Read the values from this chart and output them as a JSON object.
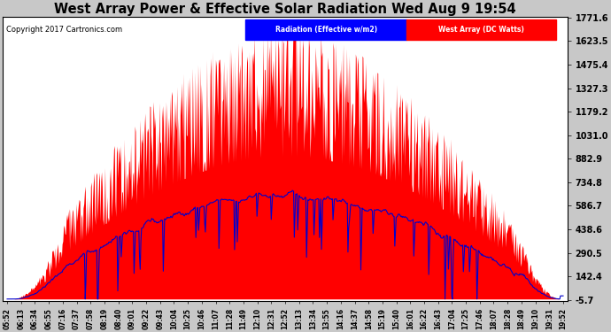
{
  "title": "West Array Power & Effective Solar Radiation Wed Aug 9 19:54",
  "copyright": "Copyright 2017 Cartronics.com",
  "legend_blue": "Radiation (Effective w/m2)",
  "legend_red": "West Array (DC Watts)",
  "yticks": [
    1771.6,
    1623.5,
    1475.4,
    1327.3,
    1179.2,
    1031.0,
    882.9,
    734.8,
    586.7,
    438.6,
    290.5,
    142.4,
    -5.7
  ],
  "ymin": -5.7,
  "ymax": 1771.6,
  "bg_color": "#c8c8c8",
  "plot_bg": "#ffffff",
  "grid_color": "#cccccc",
  "title_color": "black",
  "red_color": "#ff0000",
  "blue_color": "#0000cc",
  "xtick_labels": [
    "05:52",
    "06:13",
    "06:34",
    "06:55",
    "07:16",
    "07:37",
    "07:58",
    "08:19",
    "08:40",
    "09:01",
    "09:22",
    "09:43",
    "10:04",
    "10:25",
    "10:46",
    "11:07",
    "11:28",
    "11:49",
    "12:10",
    "12:31",
    "12:52",
    "13:13",
    "13:34",
    "13:55",
    "14:16",
    "14:37",
    "14:58",
    "15:19",
    "15:40",
    "16:01",
    "16:22",
    "16:43",
    "17:04",
    "17:25",
    "17:46",
    "18:07",
    "18:28",
    "18:49",
    "19:10",
    "19:31",
    "19:52"
  ]
}
